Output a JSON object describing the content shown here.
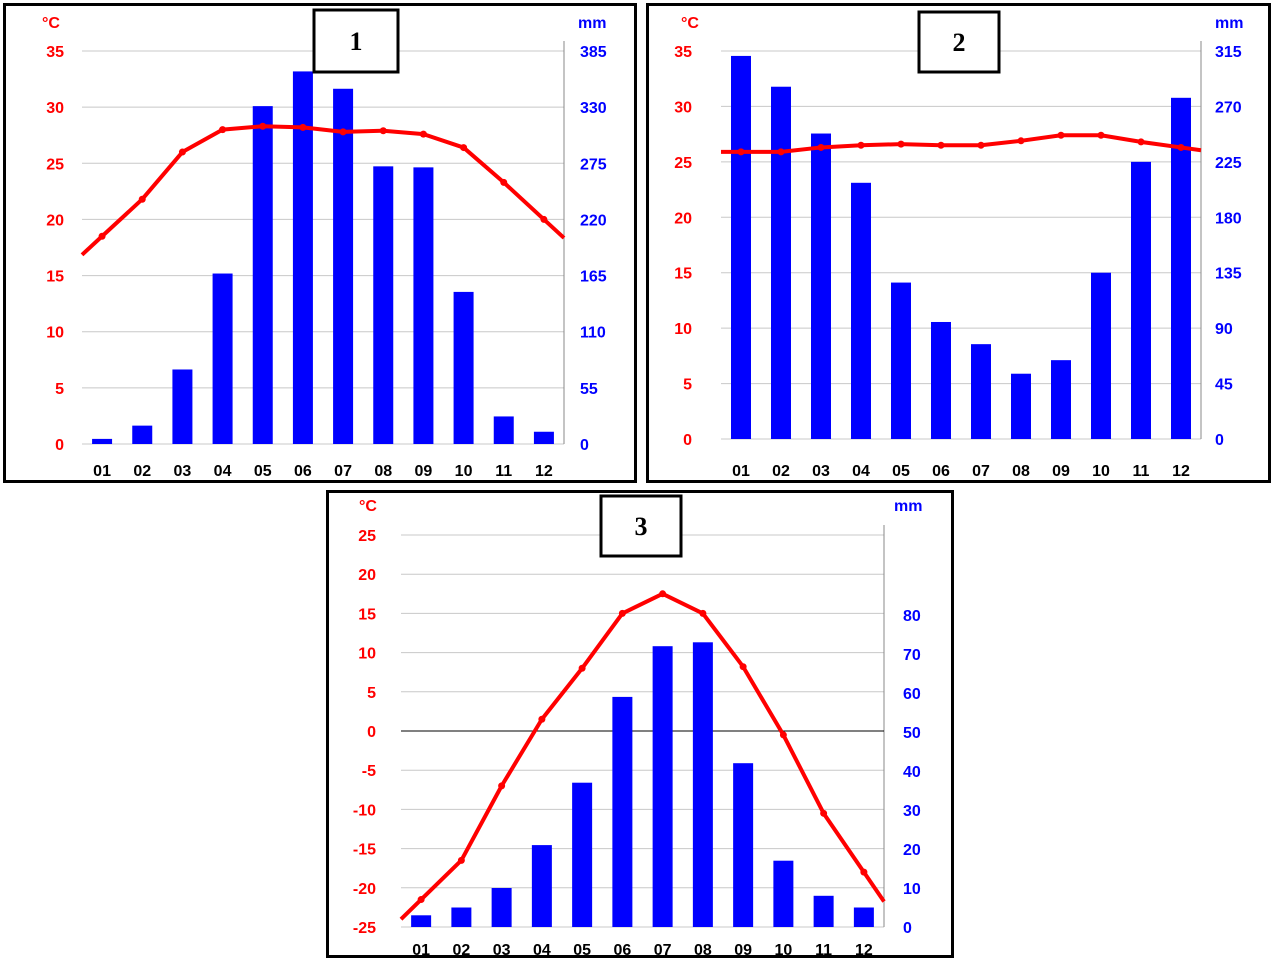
{
  "chart_data": [
    {
      "type": "bar",
      "label": "1",
      "temp_unit": "°C",
      "precip_unit": "mm",
      "categories": [
        "01",
        "02",
        "03",
        "04",
        "05",
        "06",
        "07",
        "08",
        "09",
        "10",
        "11",
        "12"
      ],
      "temperature": [
        18.5,
        21.8,
        26.0,
        28.0,
        28.3,
        28.2,
        27.8,
        27.9,
        27.6,
        26.4,
        23.3,
        20.0
      ],
      "precipitation": [
        5,
        18,
        73,
        167,
        331,
        365,
        348,
        272,
        271,
        149,
        27,
        12
      ],
      "temp_ylim": [
        0,
        35
      ],
      "temp_ticks": [
        "0",
        "5",
        "10",
        "15",
        "20",
        "25",
        "30",
        "35"
      ],
      "precip_ylim": [
        0,
        385
      ],
      "precip_ticks": [
        "0",
        "55",
        "110",
        "165",
        "220",
        "275",
        "330",
        "385"
      ],
      "temp_color": "#ff0000",
      "precip_color": "#0000ff",
      "grid": true
    },
    {
      "type": "bar",
      "label": "2",
      "temp_unit": "°C",
      "precip_unit": "mm",
      "categories": [
        "01",
        "02",
        "03",
        "04",
        "05",
        "06",
        "07",
        "08",
        "09",
        "10",
        "11",
        "12"
      ],
      "temperature": [
        25.9,
        25.9,
        26.3,
        26.5,
        26.6,
        26.5,
        26.5,
        26.9,
        27.4,
        27.4,
        26.8,
        26.3
      ],
      "precipitation": [
        311,
        286,
        248,
        208,
        127,
        95,
        77,
        53,
        64,
        135,
        225,
        277
      ],
      "temp_ylim": [
        0,
        35
      ],
      "temp_ticks": [
        "0",
        "5",
        "10",
        "15",
        "20",
        "25",
        "30",
        "35"
      ],
      "precip_ylim": [
        0,
        315
      ],
      "precip_ticks": [
        "0",
        "45",
        "90",
        "135",
        "180",
        "225",
        "270",
        "315"
      ],
      "temp_color": "#ff0000",
      "precip_color": "#0000ff",
      "grid": true
    },
    {
      "type": "bar",
      "label": "3",
      "temp_unit": "°C",
      "precip_unit": "mm",
      "categories": [
        "01",
        "02",
        "03",
        "04",
        "05",
        "06",
        "07",
        "08",
        "09",
        "10",
        "11",
        "12"
      ],
      "temperature": [
        -21.5,
        -16.5,
        -7.0,
        1.5,
        8.0,
        15.0,
        17.5,
        15.0,
        8.2,
        -0.5,
        -10.5,
        -18.0
      ],
      "precipitation": [
        3,
        5,
        10,
        21,
        37,
        59,
        72,
        73,
        42,
        17,
        8,
        5
      ],
      "temp_ylim": [
        -25,
        25
      ],
      "temp_ticks": [
        "-25",
        "-20",
        "-15",
        "-10",
        "-5",
        "0",
        "5",
        "10",
        "15",
        "20",
        "25"
      ],
      "precip_ylim": [
        0,
        80
      ],
      "precip_ticks": [
        "0",
        "10",
        "20",
        "30",
        "40",
        "50",
        "60",
        "70",
        "80"
      ],
      "temp_color": "#ff0000",
      "precip_color": "#0000ff",
      "grid": true
    }
  ]
}
